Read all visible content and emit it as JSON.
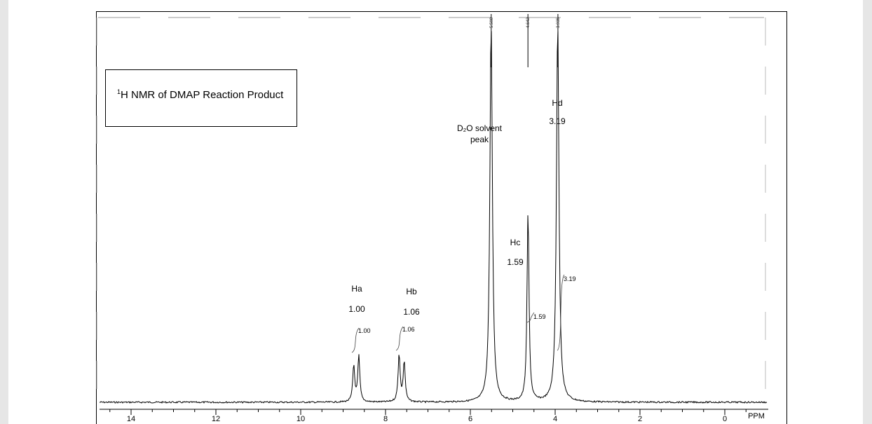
{
  "chart_data": {
    "type": "line",
    "title_prefix": "1",
    "title": "H NMR of DMAP Reaction Product",
    "xlabel": "PPM",
    "xlim": [
      14.6,
      -0.8
    ],
    "x_ticks": [
      "14",
      "12",
      "10",
      "8",
      "6",
      "4",
      "2",
      "0"
    ],
    "peak_markers": [
      "5.508",
      "4.642",
      "3.935"
    ],
    "solvent_label": [
      "D₂O solvent",
      "peak"
    ],
    "peaks": [
      {
        "label": "Ha",
        "integration": "1.00",
        "integral_tag": "1.00",
        "shifts": [
          8.75,
          8.63
        ],
        "heights": [
          0.095,
          0.12
        ]
      },
      {
        "label": "Hb",
        "integration": "1.06",
        "integral_tag": "1.06",
        "shifts": [
          7.68,
          7.56
        ],
        "heights": [
          0.125,
          0.105
        ]
      },
      {
        "label": "",
        "integration": "",
        "integral_tag": "",
        "shifts": [
          5.51
        ],
        "heights": [
          1.0
        ]
      },
      {
        "label": "Hc",
        "integration": "1.59",
        "integral_tag": "1.59",
        "shifts": [
          4.64
        ],
        "heights": [
          0.5
        ]
      },
      {
        "label": "Hd",
        "integration": "3.19",
        "integral_tag": "3.19",
        "shifts": [
          3.94
        ],
        "heights": [
          1.0
        ]
      }
    ],
    "grid": false
  }
}
